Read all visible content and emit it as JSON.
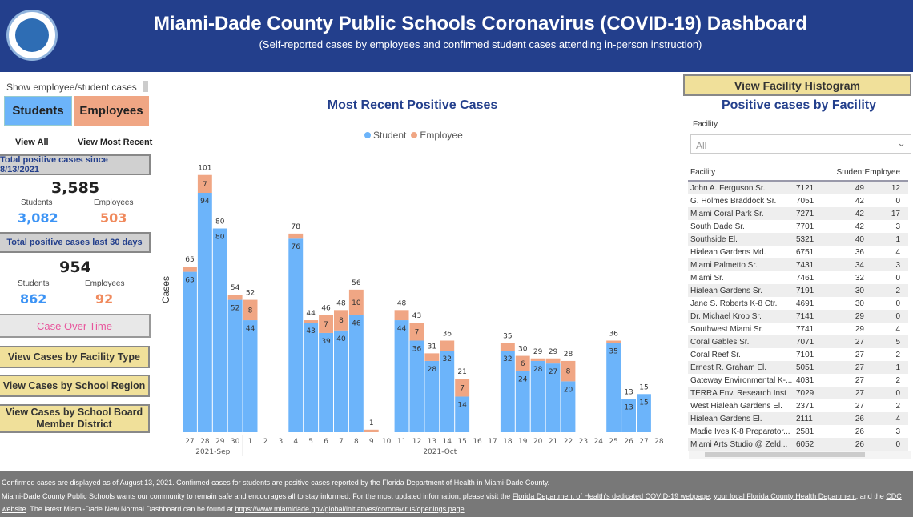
{
  "header": {
    "title": "Miami-Dade County Public Schools Coronavirus (COVID-19) Dashboard",
    "subtitle": "(Self-reported cases by employees and confirmed student cases attending in-person instruction)"
  },
  "left": {
    "toggle_label": "Show employee/student cases",
    "students_btn": "Students",
    "employees_btn": "Employees",
    "view_all": "View All",
    "view_recent": "View Most Recent",
    "total_since_label": "Total positive cases since 8/13/2021",
    "total_since": "3,585",
    "students_label": "Students",
    "employees_label": "Employees",
    "since_students": "3,082",
    "since_employees": "503",
    "last30_label": "Total positive cases last 30 days",
    "last30": "954",
    "last30_students": "862",
    "last30_employees": "92",
    "case_over_time": "Case Over Time",
    "btn_facility_type": "View Cases by Facility Type",
    "btn_region": "View Cases by School Region",
    "btn_board": "View Cases by School Board Member District"
  },
  "chart_data": {
    "type": "bar",
    "stacked": true,
    "title": "Most Recent Positive Cases",
    "ylabel": "Cases",
    "xlabel": "",
    "legend": "top",
    "colors": {
      "Student": "#6cb4fa",
      "Employee": "#f0a684"
    },
    "categories": [
      "27",
      "28",
      "29",
      "30",
      "1",
      "2",
      "3",
      "4",
      "5",
      "6",
      "7",
      "8",
      "9",
      "10",
      "11",
      "12",
      "13",
      "14",
      "15",
      "16",
      "17",
      "18",
      "19",
      "20",
      "21",
      "22",
      "23",
      "24",
      "25",
      "26",
      "27",
      "28"
    ],
    "x_groups": [
      {
        "label": "2021-Sep"
      },
      {
        "label": "2021-Oct"
      }
    ],
    "series": [
      {
        "name": "Student",
        "values": [
          63,
          94,
          80,
          52,
          44,
          0,
          0,
          76,
          43,
          39,
          40,
          46,
          0,
          0,
          44,
          36,
          28,
          32,
          14,
          0,
          0,
          32,
          24,
          28,
          27,
          20,
          0,
          0,
          35,
          13,
          15,
          0
        ]
      },
      {
        "name": "Employee",
        "values": [
          2,
          7,
          0,
          2,
          8,
          0,
          0,
          2,
          1,
          7,
          8,
          10,
          1,
          0,
          4,
          7,
          3,
          4,
          7,
          0,
          0,
          3,
          6,
          1,
          2,
          8,
          0,
          0,
          1,
          0,
          0,
          0
        ]
      }
    ],
    "totals": [
      65,
      101,
      80,
      54,
      52,
      null,
      null,
      78,
      44,
      46,
      48,
      56,
      1,
      null,
      48,
      43,
      31,
      36,
      21,
      null,
      null,
      35,
      30,
      29,
      29,
      28,
      null,
      null,
      36,
      13,
      15,
      null
    ],
    "ylim": [
      0,
      105
    ]
  },
  "right": {
    "hist_btn": "View Facility Histogram",
    "title": "Positive cases by Facility",
    "filter_label": "Facility",
    "filter_value": "All",
    "columns": [
      "Facility",
      "",
      "Student",
      "Employee"
    ],
    "rows": [
      [
        "John A. Ferguson Sr.",
        "7121",
        "49",
        "12"
      ],
      [
        "G. Holmes Braddock Sr.",
        "7051",
        "42",
        "0"
      ],
      [
        "Miami Coral Park Sr.",
        "7271",
        "42",
        "17"
      ],
      [
        "South Dade Sr.",
        "7701",
        "42",
        "3"
      ],
      [
        "Southside El.",
        "5321",
        "40",
        "1"
      ],
      [
        "Hialeah Gardens Md.",
        "6751",
        "36",
        "4"
      ],
      [
        "Miami Palmetto Sr.",
        "7431",
        "34",
        "3"
      ],
      [
        "Miami Sr.",
        "7461",
        "32",
        "0"
      ],
      [
        "Hialeah Gardens Sr.",
        "7191",
        "30",
        "2"
      ],
      [
        "Jane S. Roberts K-8 Ctr.",
        "4691",
        "30",
        "0"
      ],
      [
        "Dr. Michael Krop Sr.",
        "7141",
        "29",
        "0"
      ],
      [
        "Southwest Miami Sr.",
        "7741",
        "29",
        "4"
      ],
      [
        "Coral Gables Sr.",
        "7071",
        "27",
        "5"
      ],
      [
        "Coral Reef Sr.",
        "7101",
        "27",
        "2"
      ],
      [
        "Ernest R. Graham El.",
        "5051",
        "27",
        "1"
      ],
      [
        "Gateway Environmental K-...",
        "4031",
        "27",
        "2"
      ],
      [
        "TERRA Env. Research Inst",
        "7029",
        "27",
        "0"
      ],
      [
        "West Hialeah Gardens El.",
        "2371",
        "27",
        "2"
      ],
      [
        "Hialeah Gardens El.",
        "2111",
        "26",
        "4"
      ],
      [
        "Madie Ives K-8 Preparator...",
        "2581",
        "26",
        "3"
      ],
      [
        "Miami Arts Studio @ Zeld...",
        "6052",
        "26",
        "0"
      ]
    ]
  },
  "footer": {
    "line1": "Confirmed cases are displayed as of August 13, 2021. Confirmed cases for students are positive cases reported by the Florida Department of Health in Miami-Dade County.",
    "line2a": "Miami-Dade County Public Schools wants our community to remain safe and encourages all to stay informed. For the most updated information, please visit the ",
    "link1": "Florida Department of Health's dedicated COVID-19 webpage",
    "sep1": ", ",
    "link2": "your local Florida County Health Department",
    "sep2": ", and the ",
    "link3": "CDC website",
    "line2b": ". The latest Miami-Dade New Normal Dashboard can be found at ",
    "link4": "https://www.miamidade.gov/global/initiatives/coronavirus/openings.page",
    "end": "."
  }
}
